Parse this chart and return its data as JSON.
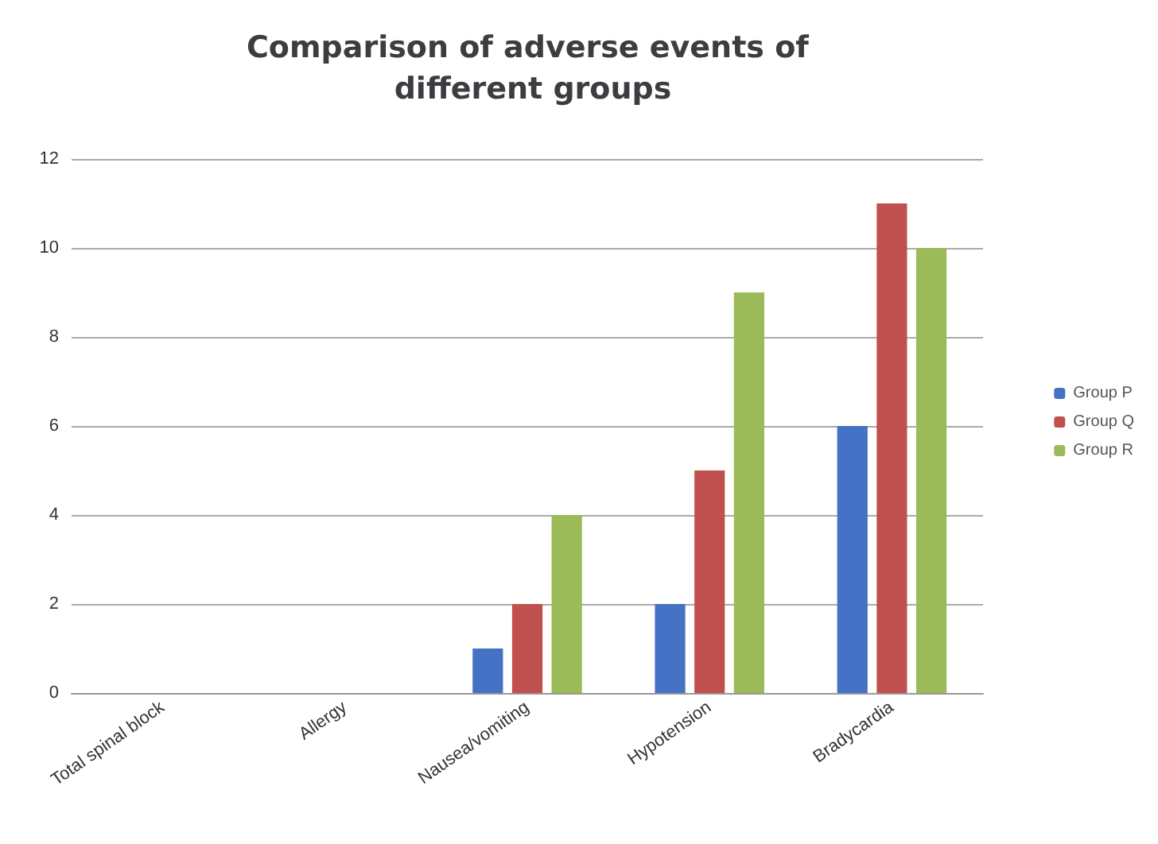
{
  "chart_data": {
    "type": "bar",
    "title": "Comparison of adverse events of different groups",
    "categories": [
      "Total spinal block",
      "Allergy",
      "Nausea/vomiting",
      "Hypotension",
      "Bradycardia"
    ],
    "series": [
      {
        "name": "Group P",
        "color": "#4472c4",
        "values": [
          0,
          0,
          1,
          2,
          6
        ]
      },
      {
        "name": "Group Q",
        "color": "#c0504d",
        "values": [
          0,
          0,
          2,
          5,
          11
        ]
      },
      {
        "name": "Group R",
        "color": "#9bbb59",
        "values": [
          0,
          0,
          4,
          9,
          10
        ]
      }
    ],
    "ylim": [
      0,
      12
    ],
    "yticks": [
      0,
      2,
      4,
      6,
      8,
      10,
      12
    ],
    "grid": "y",
    "legend": "right"
  }
}
